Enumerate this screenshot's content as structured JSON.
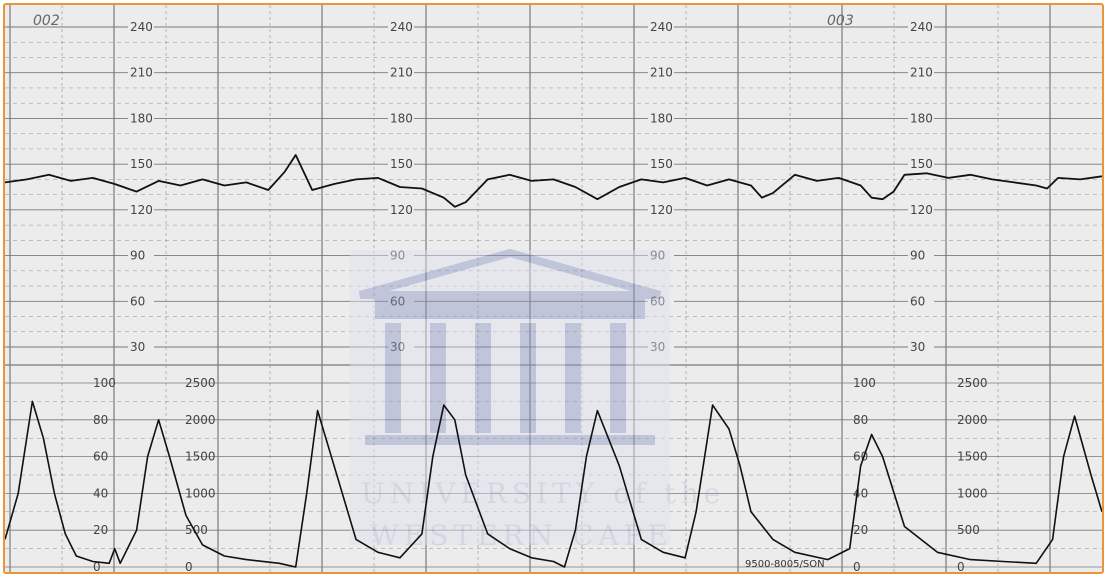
{
  "chart_data": [
    {
      "type": "line",
      "ylim": [
        30,
        240
      ],
      "y_ticks": [
        "240",
        "210",
        "180",
        "150",
        "120",
        "90",
        "60",
        "30"
      ],
      "series": [
        {
          "values": [
            [
              0,
              138
            ],
            [
              0.02,
              140
            ],
            [
              0.04,
              143
            ],
            [
              0.06,
              139
            ],
            [
              0.08,
              141
            ],
            [
              0.1,
              137
            ],
            [
              0.12,
              132
            ],
            [
              0.14,
              139
            ],
            [
              0.16,
              136
            ],
            [
              0.18,
              140
            ],
            [
              0.2,
              136
            ],
            [
              0.22,
              138
            ],
            [
              0.24,
              133
            ],
            [
              0.255,
              145
            ],
            [
              0.265,
              156
            ],
            [
              0.28,
              133
            ],
            [
              0.3,
              137
            ],
            [
              0.32,
              140
            ],
            [
              0.34,
              141
            ],
            [
              0.36,
              135
            ],
            [
              0.38,
              134
            ],
            [
              0.4,
              128
            ],
            [
              0.41,
              122
            ],
            [
              0.42,
              125
            ],
            [
              0.44,
              140
            ],
            [
              0.46,
              143
            ],
            [
              0.48,
              139
            ],
            [
              0.5,
              140
            ],
            [
              0.52,
              135
            ],
            [
              0.54,
              127
            ],
            [
              0.56,
              135
            ],
            [
              0.58,
              140
            ],
            [
              0.6,
              138
            ],
            [
              0.62,
              141
            ],
            [
              0.64,
              136
            ],
            [
              0.66,
              140
            ],
            [
              0.68,
              136
            ],
            [
              0.69,
              128
            ],
            [
              0.7,
              131
            ],
            [
              0.72,
              143
            ],
            [
              0.74,
              139
            ],
            [
              0.76,
              141
            ],
            [
              0.78,
              136
            ],
            [
              0.79,
              128
            ],
            [
              0.8,
              127
            ],
            [
              0.81,
              132
            ],
            [
              0.82,
              143
            ],
            [
              0.84,
              144
            ],
            [
              0.86,
              141
            ],
            [
              0.88,
              143
            ],
            [
              0.9,
              140
            ],
            [
              0.92,
              138
            ],
            [
              0.94,
              136
            ],
            [
              0.95,
              134
            ],
            [
              0.96,
              141
            ],
            [
              0.98,
              140
            ],
            [
              1,
              142
            ]
          ]
        }
      ]
    },
    {
      "type": "line",
      "ylim": [
        0,
        100
      ],
      "y_ticks_left": [
        "100",
        "80",
        "60",
        "40",
        "20",
        "0"
      ],
      "y_ticks_right": [
        "2500",
        "2000",
        "1500",
        "1000",
        "500",
        "0"
      ],
      "series": [
        {
          "values": [
            [
              0,
              15
            ],
            [
              0.012,
              40
            ],
            [
              0.025,
              90
            ],
            [
              0.035,
              70
            ],
            [
              0.045,
              40
            ],
            [
              0.055,
              18
            ],
            [
              0.065,
              6
            ],
            [
              0.08,
              3
            ],
            [
              0.095,
              2
            ],
            [
              0.1,
              10
            ],
            [
              0.105,
              2
            ],
            [
              0.12,
              20
            ],
            [
              0.13,
              60
            ],
            [
              0.14,
              80
            ],
            [
              0.15,
              60
            ],
            [
              0.165,
              28
            ],
            [
              0.18,
              12
            ],
            [
              0.2,
              6
            ],
            [
              0.22,
              4
            ],
            [
              0.25,
              2
            ],
            [
              0.265,
              0
            ],
            [
              0.275,
              40
            ],
            [
              0.285,
              85
            ],
            [
              0.3,
              55
            ],
            [
              0.32,
              15
            ],
            [
              0.34,
              8
            ],
            [
              0.36,
              5
            ],
            [
              0.38,
              18
            ],
            [
              0.39,
              60
            ],
            [
              0.4,
              88
            ],
            [
              0.41,
              80
            ],
            [
              0.42,
              50
            ],
            [
              0.44,
              18
            ],
            [
              0.46,
              10
            ],
            [
              0.48,
              5
            ],
            [
              0.5,
              3
            ],
            [
              0.51,
              0
            ],
            [
              0.52,
              20
            ],
            [
              0.53,
              60
            ],
            [
              0.54,
              85
            ],
            [
              0.56,
              55
            ],
            [
              0.58,
              15
            ],
            [
              0.6,
              8
            ],
            [
              0.62,
              5
            ],
            [
              0.63,
              30
            ],
            [
              0.645,
              88
            ],
            [
              0.66,
              75
            ],
            [
              0.67,
              55
            ],
            [
              0.68,
              30
            ],
            [
              0.7,
              15
            ],
            [
              0.72,
              8
            ],
            [
              0.75,
              4
            ],
            [
              0.77,
              10
            ],
            [
              0.78,
              55
            ],
            [
              0.79,
              72
            ],
            [
              0.8,
              60
            ],
            [
              0.82,
              22
            ],
            [
              0.85,
              8
            ],
            [
              0.88,
              4
            ],
            [
              0.91,
              3
            ],
            [
              0.94,
              2
            ],
            [
              0.955,
              15
            ],
            [
              0.965,
              60
            ],
            [
              0.975,
              82
            ],
            [
              0.99,
              50
            ],
            [
              1,
              30
            ]
          ]
        }
      ]
    }
  ],
  "header": {
    "left_code": "002",
    "right_code": "003"
  },
  "footer": {
    "form_code": "9500-8005/SON"
  },
  "watermark": {
    "line1": "UNIVERSITY of the",
    "line2": "WESTERN CAPE"
  },
  "colors": {
    "border": "#e8963a",
    "paper": "#ececec",
    "grid": "#7a7a7a",
    "trace": "#111111",
    "watermark": "#9aa3c9"
  }
}
